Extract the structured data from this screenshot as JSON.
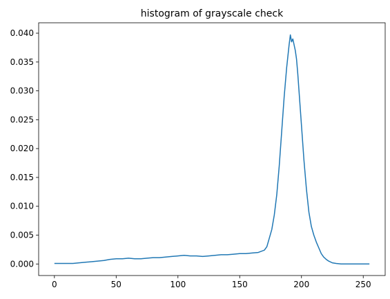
{
  "chart_data": {
    "type": "line",
    "title": "histogram of grayscale check",
    "xlabel": "",
    "ylabel": "",
    "xlim": [
      -12.75,
      267.75
    ],
    "ylim": [
      -0.002,
      0.0418
    ],
    "xticks": [
      0,
      50,
      100,
      150,
      200,
      250
    ],
    "xtick_labels": [
      "0",
      "50",
      "100",
      "150",
      "200",
      "250"
    ],
    "yticks": [
      0.0,
      0.005,
      0.01,
      0.015,
      0.02,
      0.025,
      0.03,
      0.035,
      0.04
    ],
    "ytick_labels": [
      "0.000",
      "0.005",
      "0.010",
      "0.015",
      "0.020",
      "0.025",
      "0.030",
      "0.035",
      "0.040"
    ],
    "grid": false,
    "line_color": "#1f77b4",
    "series": [
      {
        "x": [
          0,
          5,
          10,
          15,
          20,
          25,
          30,
          35,
          40,
          45,
          50,
          55,
          60,
          65,
          70,
          75,
          80,
          85,
          90,
          95,
          100,
          105,
          110,
          115,
          120,
          125,
          130,
          135,
          140,
          145,
          150,
          155,
          160,
          165,
          170,
          172,
          174,
          176,
          178,
          180,
          182,
          184,
          186,
          188,
          190,
          191,
          192,
          193,
          194,
          195,
          196,
          197,
          198,
          200,
          202,
          204,
          206,
          208,
          210,
          212,
          214,
          216,
          218,
          220,
          222,
          225,
          228,
          232,
          236,
          240,
          245,
          250,
          255
        ],
        "y": [
          0.0001,
          0.0001,
          0.0001,
          0.0001,
          0.0002,
          0.0003,
          0.0004,
          0.0005,
          0.0006,
          0.0008,
          0.0009,
          0.0009,
          0.001,
          0.0009,
          0.0009,
          0.001,
          0.0011,
          0.0011,
          0.0012,
          0.0013,
          0.0014,
          0.0015,
          0.0014,
          0.0014,
          0.0013,
          0.0014,
          0.0015,
          0.0016,
          0.0016,
          0.0017,
          0.0018,
          0.0018,
          0.0019,
          0.002,
          0.0024,
          0.003,
          0.0045,
          0.006,
          0.0085,
          0.012,
          0.017,
          0.023,
          0.029,
          0.034,
          0.038,
          0.0397,
          0.0385,
          0.039,
          0.038,
          0.037,
          0.0355,
          0.033,
          0.03,
          0.024,
          0.018,
          0.013,
          0.009,
          0.0065,
          0.005,
          0.0038,
          0.0028,
          0.0018,
          0.0012,
          0.0008,
          0.0005,
          0.0002,
          0.0001,
          0.0,
          0.0,
          0.0,
          0.0,
          0.0,
          0.0
        ]
      }
    ]
  }
}
